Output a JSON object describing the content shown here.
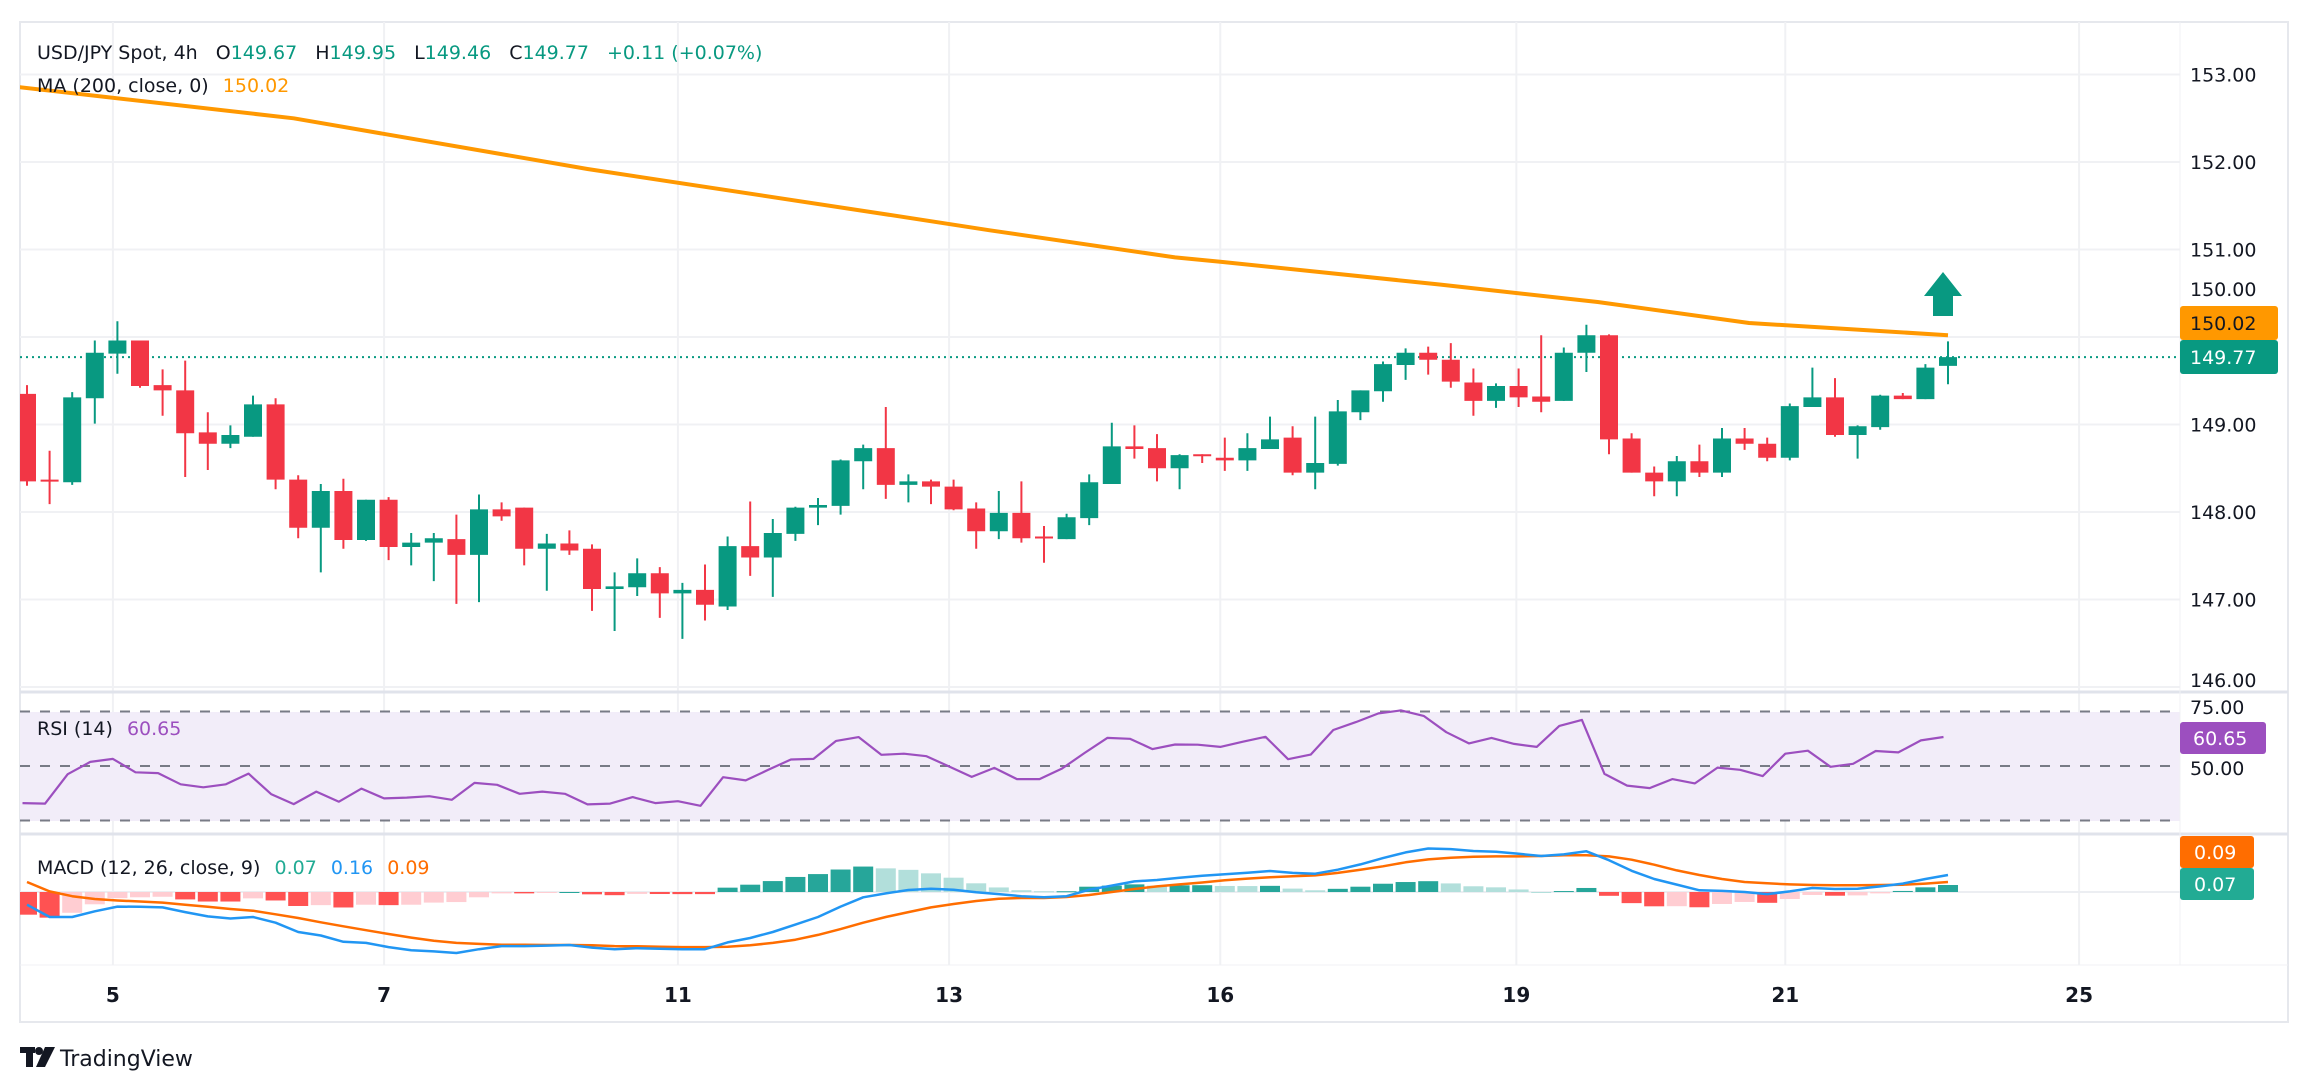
{
  "legend": {
    "symbol": "USD/JPY Spot, 4h",
    "o_label": "O",
    "open": "149.67",
    "h_label": "H",
    "high": "149.95",
    "l_label": "L",
    "low": "149.46",
    "c_label": "C",
    "close": "149.77",
    "change": "+0.11 (+0.07%)",
    "ma_label": "MA (200, close, 0)",
    "ma_value": "150.02",
    "rsi_label": "RSI (14)",
    "rsi_value": "60.65",
    "macd_label": "MACD (12, 26, close, 9)",
    "macd_hist": "0.07",
    "macd_line": "0.16",
    "macd_signal": "0.09"
  },
  "badges": {
    "ma": "150.02",
    "last_price": "149.77",
    "rsi": "60.65",
    "macd_signal": "0.09",
    "macd_hist": "0.07"
  },
  "branding": {
    "logo_text": "TradingView"
  },
  "colors": {
    "up": "#089981",
    "down": "#f23645",
    "ma": "#ff9800",
    "rsi": "#9c4fbf",
    "macd": "#2196f3",
    "signal": "#ff6d00",
    "hist_up_strong": "#26a69a",
    "hist_up_weak": "#b2dfdb",
    "hist_down_strong": "#ff5252",
    "hist_down_weak": "#ffcdd2"
  },
  "chart_data": {
    "type": "candlestick",
    "title": "USD/JPY Spot, 4h",
    "price_axis": {
      "range": [
        146,
        153
      ],
      "ticks": [
        "153.00",
        "152.00",
        "151.00",
        "150.00",
        "149.00",
        "148.00",
        "147.00",
        "146.00"
      ],
      "last_price": 149.77
    },
    "x_axis": {
      "ticks": [
        {
          "label": "5",
          "bar": 3.8
        },
        {
          "label": "7",
          "bar": 15.8
        },
        {
          "label": "11",
          "bar": 28.8
        },
        {
          "label": "13",
          "bar": 40.8
        },
        {
          "label": "16",
          "bar": 52.8
        },
        {
          "label": "19",
          "bar": 65.9
        },
        {
          "label": "21",
          "bar": 77.8
        },
        {
          "label": "25",
          "bar": 90.8
        }
      ]
    },
    "ohlc": [
      [
        149.35,
        149.45,
        148.3,
        148.35
      ],
      [
        148.37,
        148.7,
        148.09,
        148.36
      ],
      [
        148.34,
        149.37,
        148.31,
        149.31
      ],
      [
        149.3,
        149.96,
        149.01,
        149.82
      ],
      [
        149.81,
        150.18,
        149.58,
        149.96
      ],
      [
        149.96,
        149.96,
        149.42,
        149.44
      ],
      [
        149.45,
        149.63,
        149.1,
        149.39
      ],
      [
        149.39,
        149.73,
        148.4,
        148.9
      ],
      [
        148.91,
        149.14,
        148.48,
        148.78
      ],
      [
        148.78,
        148.99,
        148.73,
        148.88
      ],
      [
        148.86,
        149.33,
        148.86,
        149.23
      ],
      [
        149.23,
        149.3,
        148.26,
        148.37
      ],
      [
        148.37,
        148.42,
        147.7,
        147.82
      ],
      [
        147.82,
        148.32,
        147.31,
        148.24
      ],
      [
        148.24,
        148.38,
        147.58,
        147.68
      ],
      [
        147.68,
        148.14,
        147.67,
        148.14
      ],
      [
        148.14,
        148.17,
        147.45,
        147.6
      ],
      [
        147.6,
        147.76,
        147.39,
        147.65
      ],
      [
        147.65,
        147.76,
        147.21,
        147.7
      ],
      [
        147.69,
        147.97,
        146.95,
        147.51
      ],
      [
        147.51,
        148.2,
        146.97,
        148.03
      ],
      [
        148.03,
        148.11,
        147.9,
        147.95
      ],
      [
        148.05,
        148.05,
        147.39,
        147.58
      ],
      [
        147.58,
        147.75,
        147.1,
        147.64
      ],
      [
        147.64,
        147.79,
        147.51,
        147.56
      ],
      [
        147.58,
        147.63,
        146.87,
        147.12
      ],
      [
        147.12,
        147.31,
        146.64,
        147.15
      ],
      [
        147.14,
        147.47,
        147.04,
        147.3
      ],
      [
        147.3,
        147.37,
        146.79,
        147.07
      ],
      [
        147.07,
        147.19,
        146.55,
        147.11
      ],
      [
        147.11,
        147.4,
        146.76,
        146.94
      ],
      [
        146.92,
        147.72,
        146.88,
        147.61
      ],
      [
        147.61,
        148.12,
        147.27,
        147.48
      ],
      [
        147.48,
        147.92,
        147.03,
        147.76
      ],
      [
        147.75,
        148.06,
        147.67,
        148.05
      ],
      [
        148.05,
        148.16,
        147.85,
        148.08
      ],
      [
        148.07,
        148.6,
        147.97,
        148.59
      ],
      [
        148.58,
        148.77,
        148.26,
        148.73
      ],
      [
        148.73,
        149.2,
        148.15,
        148.31
      ],
      [
        148.31,
        148.43,
        148.11,
        148.35
      ],
      [
        148.35,
        148.37,
        148.09,
        148.29
      ],
      [
        148.29,
        148.37,
        148.02,
        148.03
      ],
      [
        148.04,
        148.11,
        147.58,
        147.78
      ],
      [
        147.78,
        148.24,
        147.69,
        147.99
      ],
      [
        147.99,
        148.35,
        147.65,
        147.7
      ],
      [
        147.72,
        147.84,
        147.42,
        147.7
      ],
      [
        147.69,
        147.98,
        147.69,
        147.94
      ],
      [
        147.93,
        148.43,
        147.85,
        148.34
      ],
      [
        148.32,
        149.02,
        148.32,
        148.75
      ],
      [
        148.75,
        148.99,
        148.61,
        148.72
      ],
      [
        148.73,
        148.89,
        148.35,
        148.5
      ],
      [
        148.5,
        148.66,
        148.26,
        148.65
      ],
      [
        148.66,
        148.66,
        148.56,
        148.64
      ],
      [
        148.62,
        148.85,
        148.47,
        148.59
      ],
      [
        148.59,
        148.9,
        148.47,
        148.73
      ],
      [
        148.72,
        149.09,
        148.72,
        148.83
      ],
      [
        148.85,
        148.98,
        148.42,
        148.45
      ],
      [
        148.45,
        149.09,
        148.26,
        148.56
      ],
      [
        148.55,
        149.28,
        148.53,
        149.15
      ],
      [
        149.14,
        149.39,
        149.05,
        149.39
      ],
      [
        149.38,
        149.72,
        149.26,
        149.69
      ],
      [
        149.68,
        149.87,
        149.51,
        149.82
      ],
      [
        149.82,
        149.89,
        149.57,
        149.74
      ],
      [
        149.74,
        149.93,
        149.42,
        149.49
      ],
      [
        149.48,
        149.64,
        149.1,
        149.27
      ],
      [
        149.27,
        149.47,
        149.19,
        149.44
      ],
      [
        149.44,
        149.64,
        149.2,
        149.31
      ],
      [
        149.32,
        150.02,
        149.14,
        149.26
      ],
      [
        149.27,
        149.88,
        149.27,
        149.82
      ],
      [
        149.82,
        150.14,
        149.6,
        150.02
      ],
      [
        150.02,
        150.03,
        148.66,
        148.83
      ],
      [
        148.84,
        148.9,
        148.45,
        148.45
      ],
      [
        148.45,
        148.52,
        148.18,
        148.35
      ],
      [
        148.35,
        148.64,
        148.18,
        148.58
      ],
      [
        148.58,
        148.77,
        148.4,
        148.45
      ],
      [
        148.45,
        148.96,
        148.4,
        148.84
      ],
      [
        148.84,
        148.96,
        148.71,
        148.78
      ],
      [
        148.78,
        148.85,
        148.58,
        148.62
      ],
      [
        148.62,
        149.24,
        148.59,
        149.21
      ],
      [
        149.2,
        149.65,
        149.2,
        149.31
      ],
      [
        149.31,
        149.53,
        148.86,
        148.88
      ],
      [
        148.88,
        148.99,
        148.61,
        148.98
      ],
      [
        148.97,
        149.34,
        148.94,
        149.33
      ],
      [
        149.33,
        149.36,
        149.29,
        149.29
      ],
      [
        149.29,
        149.69,
        149.29,
        149.65
      ],
      [
        149.67,
        149.95,
        149.46,
        149.77
      ]
    ],
    "ma200_knots": [
      [
        -1.2,
        152.88
      ],
      [
        11.8,
        152.5
      ],
      [
        24.8,
        151.92
      ],
      [
        37.8,
        151.41
      ],
      [
        42.6,
        151.22
      ],
      [
        50.8,
        150.91
      ],
      [
        52.8,
        150.86
      ],
      [
        62.5,
        150.6
      ],
      [
        69.5,
        150.4
      ],
      [
        76.2,
        150.16
      ],
      [
        85,
        150.02
      ]
    ],
    "rsi": {
      "levels": [
        70,
        50,
        30
      ],
      "axis_ticks": [
        "75.00",
        "50.00"
      ],
      "values": [
        36.4,
        36.2,
        47.0,
        51.5,
        52.6,
        47.7,
        47.4,
        43.3,
        42.2,
        43.3,
        47.2,
        39.7,
        36.0,
        40.6,
        36.9,
        41.7,
        38.1,
        38.4,
        38.9,
        37.6,
        43.8,
        43.1,
        39.8,
        40.6,
        39.8,
        35.9,
        36.2,
        38.6,
        36.4,
        37.1,
        35.4,
        45.9,
        44.7,
        48.6,
        52.4,
        52.6,
        59.2,
        60.6,
        54.1,
        54.5,
        53.6,
        49.8,
        46.0,
        49.3,
        45.2,
        45.2,
        49.1,
        54.8,
        60.3,
        60.0,
        56.2,
        57.9,
        57.8,
        57.0,
        58.9,
        60.7,
        52.5,
        54.2,
        63.2,
        66.1,
        69.3,
        70.4,
        68.4,
        62.4,
        58.3,
        60.3,
        58.1,
        57.0,
        64.7,
        66.9,
        47.1,
        42.8,
        41.9,
        45.2,
        43.6,
        49.4,
        48.6,
        46.3,
        54.5,
        55.6,
        49.7,
        50.8,
        55.5,
        55.0,
        59.4,
        60.65
      ]
    },
    "macd": {
      "macd": [
        -0.12,
        -0.236,
        -0.236,
        -0.182,
        -0.138,
        -0.14,
        -0.145,
        -0.19,
        -0.23,
        -0.25,
        -0.236,
        -0.29,
        -0.377,
        -0.41,
        -0.47,
        -0.48,
        -0.52,
        -0.55,
        -0.56,
        -0.575,
        -0.54,
        -0.51,
        -0.51,
        -0.506,
        -0.5,
        -0.525,
        -0.54,
        -0.53,
        -0.535,
        -0.54,
        -0.54,
        -0.475,
        -0.434,
        -0.377,
        -0.308,
        -0.236,
        -0.138,
        -0.05,
        -0.013,
        0.019,
        0.031,
        0.022,
        -0.003,
        -0.02,
        -0.04,
        -0.05,
        -0.04,
        0.022,
        0.06,
        0.1,
        0.113,
        0.135,
        0.154,
        0.167,
        0.182,
        0.198,
        0.18,
        0.173,
        0.21,
        0.26,
        0.32,
        0.374,
        0.41,
        0.405,
        0.387,
        0.38,
        0.36,
        0.34,
        0.355,
        0.384,
        0.3,
        0.2,
        0.123,
        0.07,
        0.016,
        0.01,
        0,
        -0.02,
        0.006,
        0.038,
        0.028,
        0.031,
        0.053,
        0.079,
        0.123,
        0.16
      ],
      "signal": [
        0.094,
        0.006,
        -0.04,
        -0.066,
        -0.08,
        -0.09,
        -0.1,
        -0.12,
        -0.14,
        -0.16,
        -0.176,
        -0.21,
        -0.245,
        -0.286,
        -0.324,
        -0.36,
        -0.396,
        -0.43,
        -0.46,
        -0.48,
        -0.49,
        -0.497,
        -0.497,
        -0.5,
        -0.5,
        -0.503,
        -0.51,
        -0.512,
        -0.516,
        -0.52,
        -0.52,
        -0.516,
        -0.503,
        -0.48,
        -0.45,
        -0.405,
        -0.35,
        -0.29,
        -0.236,
        -0.19,
        -0.145,
        -0.113,
        -0.085,
        -0.063,
        -0.057,
        -0.057,
        -0.047,
        -0.028,
        0,
        0.028,
        0.053,
        0.072,
        0.09,
        0.11,
        0.126,
        0.14,
        0.148,
        0.157,
        0.18,
        0.21,
        0.242,
        0.28,
        0.308,
        0.324,
        0.333,
        0.336,
        0.336,
        0.34,
        0.346,
        0.346,
        0.336,
        0.305,
        0.258,
        0.204,
        0.16,
        0.123,
        0.094,
        0.082,
        0.072,
        0.066,
        0.063,
        0.063,
        0.066,
        0.069,
        0.079,
        0.094
      ]
    }
  }
}
